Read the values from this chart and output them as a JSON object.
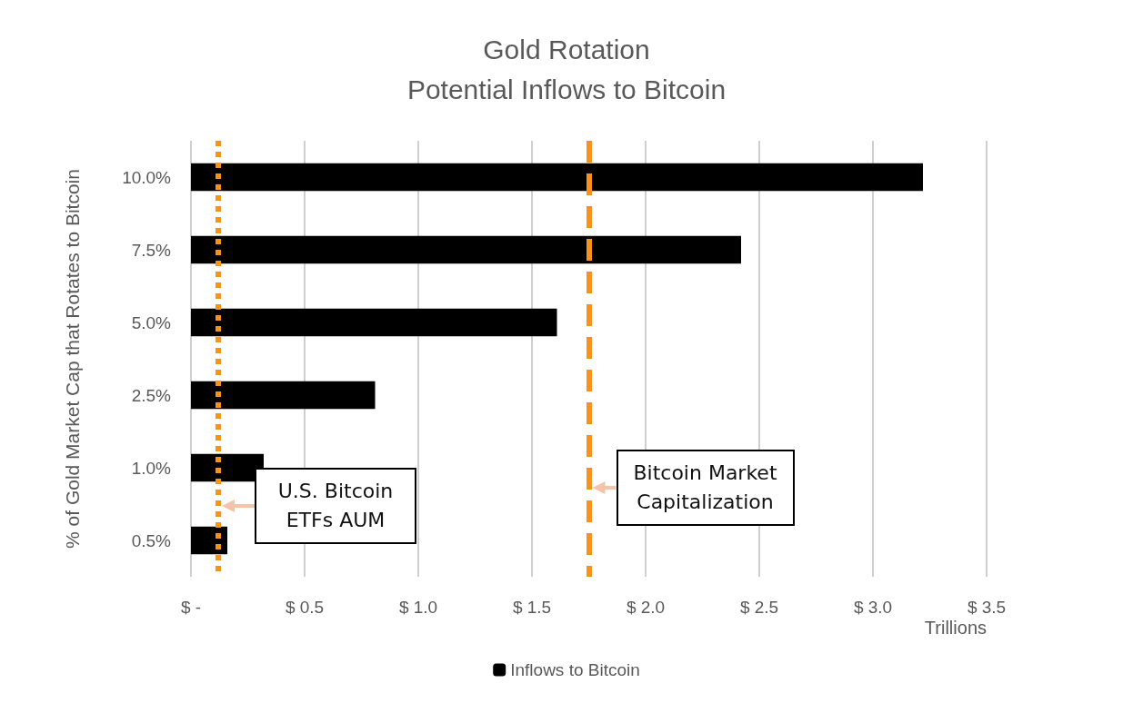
{
  "chart_data": {
    "type": "bar",
    "orientation": "horizontal",
    "title": "Gold Rotation",
    "subtitle": "Potential Inflows to Bitcoin",
    "ylabel": "% of Gold Market Cap that Rotates to Bitcoin",
    "xlabel": "Trillions",
    "categories": [
      "10.0%",
      "7.5%",
      "5.0%",
      "2.5%",
      "1.0%",
      "0.5%"
    ],
    "series": [
      {
        "name": "Inflows to Bitcoin",
        "color": "#000000",
        "values": [
          3.22,
          2.42,
          1.61,
          0.81,
          0.32,
          0.16
        ]
      }
    ],
    "xlim": [
      0,
      3.5
    ],
    "xticks": [
      {
        "value": 0,
        "label": "$ -"
      },
      {
        "value": 0.5,
        "label": "$ 0.5"
      },
      {
        "value": 1,
        "label": "$ 1.0"
      },
      {
        "value": 1.5,
        "label": "$ 1.5"
      },
      {
        "value": 2,
        "label": "$ 2.0"
      },
      {
        "value": 2.5,
        "label": "$ 2.5"
      },
      {
        "value": 3,
        "label": "$ 3.0"
      },
      {
        "value": 3.5,
        "label": "$ 3.5"
      }
    ],
    "ref_lines": [
      {
        "axis": "x",
        "value": 0.12,
        "label": "U.S. Bitcoin ETFs AUM",
        "color": "#f7931a",
        "line_style": "dotted"
      },
      {
        "axis": "x",
        "value": 1.75,
        "label": "Bitcoin Market Capitalization",
        "color": "#f7931a",
        "line_style": "dashed"
      }
    ],
    "grid": "x",
    "legend": "bottom"
  }
}
